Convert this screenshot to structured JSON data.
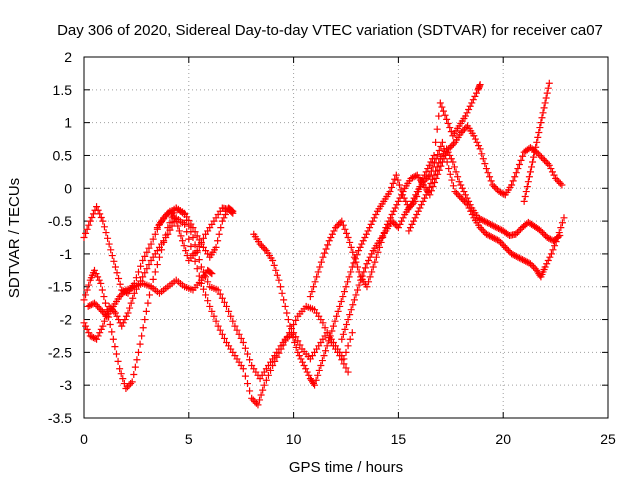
{
  "chart_data": {
    "type": "scatter",
    "title": "Day 306 of 2020, Sidereal Day-to-day VTEC variation (SDTVAR) for receiver ca07",
    "xlabel": "GPS time / hours",
    "ylabel": "SDTVAR / TECUs",
    "xlim": [
      0,
      25
    ],
    "ylim": [
      -3.5,
      2
    ],
    "grid": true,
    "marker": "+",
    "x_ticks": [
      0,
      5,
      10,
      15,
      20,
      25
    ],
    "x_tick_labels": [
      "0",
      "5",
      "10",
      "15",
      "20",
      "25"
    ],
    "y_ticks": [
      -3.5,
      -3,
      -2.5,
      -2,
      -1.5,
      -1,
      -0.5,
      0,
      0.5,
      1,
      1.5,
      2
    ],
    "y_tick_labels": [
      "-3.5",
      "-3",
      "-2.5",
      "-2",
      "-1.5",
      "-1",
      "-0.5",
      "0",
      "0.5",
      "1",
      "1.5",
      "2"
    ],
    "series": [
      {
        "name": "trace-1",
        "color": "#ff0000",
        "points": [
          [
            0,
            -0.75
          ],
          [
            0.3,
            -0.5
          ],
          [
            0.6,
            -0.28
          ],
          [
            0.9,
            -0.5
          ],
          [
            1.2,
            -0.85
          ],
          [
            1.5,
            -1.2
          ],
          [
            1.8,
            -1.55
          ],
          [
            2.1,
            -1.6
          ],
          [
            2.4,
            -1.45
          ],
          [
            2.8,
            -1.1
          ],
          [
            3.2,
            -0.85
          ],
          [
            3.6,
            -0.55
          ],
          [
            4.0,
            -0.38
          ],
          [
            4.4,
            -0.3
          ],
          [
            4.8,
            -0.38
          ],
          [
            5.2,
            -0.6
          ],
          [
            5.6,
            -0.85
          ],
          [
            6.0,
            -1.05
          ],
          [
            6.3,
            -0.9
          ],
          [
            6.6,
            -0.5
          ],
          [
            6.9,
            -0.3
          ],
          [
            7.1,
            -0.35
          ]
        ]
      },
      {
        "name": "trace-2",
        "color": "#ff0000",
        "points": [
          [
            0,
            -1.7
          ],
          [
            0.3,
            -1.4
          ],
          [
            0.5,
            -1.25
          ],
          [
            0.8,
            -1.45
          ],
          [
            1.1,
            -1.85
          ],
          [
            1.4,
            -2.3
          ],
          [
            1.7,
            -2.75
          ],
          [
            2.0,
            -3.05
          ],
          [
            2.3,
            -2.95
          ],
          [
            2.6,
            -2.5
          ],
          [
            2.9,
            -2.0
          ],
          [
            3.2,
            -1.5
          ],
          [
            3.6,
            -1.05
          ],
          [
            4.0,
            -0.6
          ],
          [
            4.4,
            -0.3
          ],
          [
            4.8,
            -0.4
          ],
          [
            5.2,
            -0.75
          ],
          [
            5.6,
            -1.2
          ],
          [
            6.0,
            -1.5
          ],
          [
            6.4,
            -1.55
          ],
          [
            6.8,
            -1.8
          ],
          [
            7.2,
            -2.1
          ],
          [
            7.6,
            -2.35
          ],
          [
            8.0,
            -2.7
          ],
          [
            8.4,
            -2.9
          ],
          [
            8.8,
            -2.7
          ],
          [
            9.2,
            -2.5
          ],
          [
            9.6,
            -2.3
          ],
          [
            10.0,
            -2.2
          ],
          [
            10.4,
            -2.45
          ],
          [
            10.8,
            -2.6
          ],
          [
            11.2,
            -2.4
          ],
          [
            11.6,
            -2.2
          ],
          [
            12.0,
            -2.4
          ],
          [
            12.4,
            -2.6
          ],
          [
            12.8,
            -2.2
          ]
        ]
      },
      {
        "name": "trace-3",
        "color": "#ff0000",
        "points": [
          [
            0,
            -2.05
          ],
          [
            0.3,
            -2.25
          ],
          [
            0.6,
            -2.3
          ],
          [
            0.9,
            -2.1
          ],
          [
            1.2,
            -1.8
          ],
          [
            1.5,
            -1.9
          ],
          [
            1.8,
            -2.1
          ],
          [
            2.1,
            -1.9
          ],
          [
            2.4,
            -1.6
          ],
          [
            2.8,
            -1.35
          ],
          [
            3.2,
            -1.1
          ],
          [
            3.6,
            -0.9
          ],
          [
            4.0,
            -0.7
          ],
          [
            4.4,
            -0.45
          ],
          [
            4.8,
            -0.55
          ],
          [
            5.2,
            -1.0
          ],
          [
            5.6,
            -1.45
          ],
          [
            6.0,
            -1.8
          ],
          [
            6.4,
            -2.1
          ],
          [
            6.8,
            -2.35
          ],
          [
            7.2,
            -2.55
          ],
          [
            7.6,
            -2.75
          ],
          [
            8.0,
            -3.2
          ],
          [
            8.3,
            -3.3
          ],
          [
            8.6,
            -3.0
          ],
          [
            9.0,
            -2.7
          ],
          [
            9.4,
            -2.45
          ],
          [
            9.8,
            -2.2
          ],
          [
            10.2,
            -1.95
          ],
          [
            10.6,
            -1.8
          ],
          [
            11.0,
            -1.85
          ],
          [
            11.4,
            -2.05
          ],
          [
            11.8,
            -2.35
          ],
          [
            12.2,
            -2.55
          ],
          [
            12.6,
            -2.8
          ]
        ]
      },
      {
        "name": "trace-4",
        "color": "#ff0000",
        "points": [
          [
            0.2,
            -1.8
          ],
          [
            0.5,
            -1.75
          ],
          [
            0.8,
            -1.85
          ],
          [
            1.1,
            -1.95
          ],
          [
            1.4,
            -1.8
          ],
          [
            1.7,
            -1.65
          ],
          [
            2.0,
            -1.55
          ],
          [
            2.4,
            -1.5
          ],
          [
            2.8,
            -1.45
          ],
          [
            3.2,
            -1.5
          ],
          [
            3.6,
            -1.6
          ],
          [
            4.0,
            -1.5
          ],
          [
            4.4,
            -1.4
          ],
          [
            4.8,
            -1.5
          ],
          [
            5.2,
            -1.55
          ],
          [
            5.6,
            -1.4
          ],
          [
            5.9,
            -1.25
          ],
          [
            6.1,
            -1.3
          ]
        ]
      },
      {
        "name": "trace-5",
        "color": "#ff0000",
        "points": [
          [
            3.5,
            -0.6
          ],
          [
            3.8,
            -0.45
          ],
          [
            4.1,
            -0.35
          ],
          [
            4.4,
            -0.5
          ],
          [
            4.7,
            -0.8
          ],
          [
            5.0,
            -1.1
          ],
          [
            5.4,
            -0.95
          ],
          [
            5.8,
            -0.7
          ],
          [
            6.2,
            -0.5
          ],
          [
            6.6,
            -0.3
          ],
          [
            6.9,
            -0.32
          ],
          [
            7.1,
            -0.38
          ]
        ]
      },
      {
        "name": "trace-6",
        "color": "#ff0000",
        "points": [
          [
            8.1,
            -0.7
          ],
          [
            8.4,
            -0.85
          ],
          [
            8.7,
            -0.95
          ],
          [
            9.0,
            -1.1
          ],
          [
            9.3,
            -1.4
          ],
          [
            9.6,
            -1.8
          ],
          [
            9.9,
            -2.2
          ],
          [
            10.2,
            -2.5
          ],
          [
            10.5,
            -2.7
          ],
          [
            10.8,
            -2.9
          ],
          [
            11.0,
            -3.0
          ],
          [
            11.3,
            -2.7
          ],
          [
            11.6,
            -2.4
          ],
          [
            11.9,
            -2.1
          ],
          [
            12.2,
            -1.8
          ],
          [
            12.5,
            -1.5
          ],
          [
            12.8,
            -1.2
          ],
          [
            13.1,
            -0.95
          ],
          [
            13.4,
            -0.75
          ],
          [
            13.7,
            -0.55
          ],
          [
            14.0,
            -0.35
          ],
          [
            14.3,
            -0.2
          ],
          [
            14.6,
            -0.05
          ],
          [
            14.9,
            0.2
          ],
          [
            15.2,
            -0.1
          ],
          [
            15.5,
            -0.3
          ],
          [
            15.8,
            -0.2
          ],
          [
            16.1,
            0.1
          ],
          [
            16.4,
            0.3
          ],
          [
            16.7,
            0.5
          ],
          [
            17.0,
            1.3
          ],
          [
            17.3,
            1.05
          ],
          [
            17.6,
            0.8
          ],
          [
            17.9,
            0.95
          ],
          [
            18.2,
            1.1
          ],
          [
            18.5,
            1.3
          ],
          [
            18.8,
            1.5
          ],
          [
            18.9,
            1.58
          ]
        ]
      },
      {
        "name": "trace-7",
        "color": "#ff0000",
        "points": [
          [
            10.8,
            -1.65
          ],
          [
            11.1,
            -1.35
          ],
          [
            11.4,
            -1.05
          ],
          [
            11.7,
            -0.8
          ],
          [
            12.0,
            -0.6
          ],
          [
            12.3,
            -0.5
          ],
          [
            12.6,
            -0.75
          ],
          [
            12.9,
            -1.05
          ],
          [
            13.2,
            -1.35
          ],
          [
            13.5,
            -1.5
          ],
          [
            13.8,
            -1.2
          ],
          [
            14.1,
            -0.9
          ],
          [
            14.4,
            -0.6
          ],
          [
            14.7,
            -0.4
          ],
          [
            15.0,
            -0.2
          ],
          [
            15.3,
            0.0
          ],
          [
            15.6,
            0.15
          ],
          [
            15.9,
            0.2
          ],
          [
            16.2,
            0.05
          ],
          [
            16.5,
            -0.1
          ],
          [
            16.8,
            0.15
          ],
          [
            17.1,
            0.4
          ],
          [
            17.4,
            0.6
          ],
          [
            17.7,
            0.7
          ],
          [
            18.0,
            0.85
          ],
          [
            18.3,
            0.95
          ],
          [
            18.6,
            0.8
          ],
          [
            18.9,
            0.6
          ],
          [
            19.2,
            0.3
          ],
          [
            19.5,
            0.05
          ],
          [
            19.8,
            -0.05
          ],
          [
            20.1,
            -0.1
          ],
          [
            20.4,
            0.05
          ],
          [
            20.7,
            0.3
          ],
          [
            21.0,
            0.55
          ],
          [
            21.3,
            0.62
          ],
          [
            21.6,
            0.55
          ],
          [
            21.9,
            0.45
          ],
          [
            22.2,
            0.35
          ],
          [
            22.5,
            0.15
          ],
          [
            22.8,
            0.05
          ]
        ]
      },
      {
        "name": "trace-8",
        "color": "#ff0000",
        "points": [
          [
            12.3,
            -2.3
          ],
          [
            12.6,
            -2.0
          ],
          [
            12.9,
            -1.7
          ],
          [
            13.2,
            -1.4
          ],
          [
            13.5,
            -1.15
          ],
          [
            13.8,
            -0.95
          ],
          [
            14.1,
            -0.8
          ],
          [
            14.4,
            -0.65
          ],
          [
            14.7,
            -0.5
          ],
          [
            15.0,
            -0.6
          ],
          [
            15.3,
            -0.4
          ],
          [
            15.6,
            -0.25
          ],
          [
            15.9,
            -0.05
          ],
          [
            16.2,
            0.1
          ],
          [
            16.5,
            0.2
          ],
          [
            16.8,
            0.45
          ],
          [
            17.1,
            0.7
          ],
          [
            17.4,
            0.3
          ],
          [
            17.7,
            -0.05
          ],
          [
            18.0,
            -0.15
          ],
          [
            18.3,
            -0.25
          ],
          [
            18.6,
            -0.45
          ],
          [
            18.9,
            -0.6
          ],
          [
            19.2,
            -0.7
          ],
          [
            19.5,
            -0.75
          ],
          [
            19.8,
            -0.8
          ],
          [
            20.1,
            -0.9
          ],
          [
            20.4,
            -1.0
          ],
          [
            20.7,
            -1.05
          ],
          [
            21.0,
            -1.1
          ],
          [
            21.3,
            -1.15
          ],
          [
            21.6,
            -1.25
          ],
          [
            21.8,
            -1.35
          ],
          [
            22.0,
            -1.2
          ],
          [
            22.3,
            -1.0
          ],
          [
            22.6,
            -0.75
          ],
          [
            22.9,
            -0.45
          ]
        ]
      },
      {
        "name": "trace-9",
        "color": "#ff0000",
        "points": [
          [
            15.5,
            -0.65
          ],
          [
            15.8,
            -0.45
          ],
          [
            16.1,
            -0.25
          ],
          [
            16.4,
            -0.05
          ],
          [
            16.7,
            0.2
          ],
          [
            17.0,
            0.45
          ],
          [
            17.3,
            0.6
          ],
          [
            17.6,
            0.4
          ],
          [
            17.9,
            0.1
          ],
          [
            18.2,
            -0.1
          ],
          [
            18.5,
            -0.3
          ],
          [
            18.8,
            -0.45
          ],
          [
            19.1,
            -0.5
          ],
          [
            19.4,
            -0.55
          ],
          [
            19.7,
            -0.6
          ],
          [
            20.0,
            -0.65
          ],
          [
            20.3,
            -0.72
          ],
          [
            20.6,
            -0.7
          ],
          [
            20.9,
            -0.6
          ],
          [
            21.2,
            -0.52
          ],
          [
            21.5,
            -0.58
          ],
          [
            21.8,
            -0.65
          ],
          [
            22.1,
            -0.75
          ],
          [
            22.4,
            -0.8
          ],
          [
            22.7,
            -0.72
          ]
        ]
      },
      {
        "name": "trace-10",
        "color": "#ff0000",
        "points": [
          [
            21.0,
            -0.2
          ],
          [
            21.2,
            0.1
          ],
          [
            21.4,
            0.4
          ],
          [
            21.6,
            0.7
          ],
          [
            21.8,
            1.0
          ],
          [
            22.0,
            1.3
          ],
          [
            22.2,
            1.6
          ]
        ]
      }
    ]
  }
}
